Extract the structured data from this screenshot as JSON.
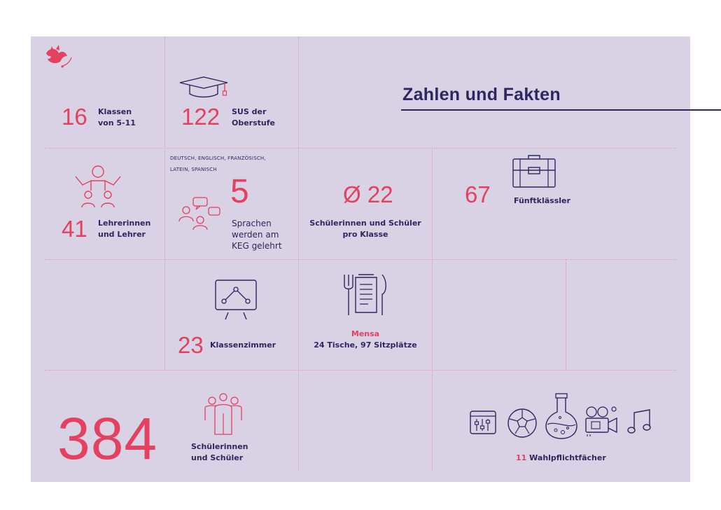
{
  "title": "Zahlen und Fakten",
  "colors": {
    "accent": "#e4405f",
    "navy": "#2d2660",
    "panel": "#d9d2e5"
  },
  "facts": {
    "klassen": {
      "number": "16",
      "label_line1": "Klassen",
      "label_line2": "von 5-11"
    },
    "oberstufe": {
      "number": "122",
      "label_line1": "SUS der",
      "label_line2": "Oberstufe",
      "icon": "graduation-cap-icon"
    },
    "lehrer": {
      "number": "41",
      "label_line1": "Lehrerinnen",
      "label_line2": "und Lehrer",
      "icon": "teachers-icon"
    },
    "sprachen": {
      "list_line1": "DEUTSCH, ENGLISCH, FRANZÖSISCH,",
      "list_line2": "LATEIN, SPANISCH",
      "number": "5",
      "label_line1": "Sprachen",
      "label_line2": "werden am",
      "label_line3": "KEG gelehrt",
      "icon": "speech-bubbles-people-icon"
    },
    "klassengroesse": {
      "number": "Ø 22",
      "label_line1": "Schülerinnen und Schüler",
      "label_line2": "pro Klasse"
    },
    "fuenftklaessler": {
      "number": "67",
      "label": "Fünftklässler",
      "icon": "briefcase-icon"
    },
    "klassenzimmer": {
      "number": "23",
      "label": "Klassenzimmer",
      "icon": "presentation-board-icon"
    },
    "mensa": {
      "title": "Mensa",
      "label": "24 Tische, 97 Sitzplätze",
      "icon": "menu-card-cutlery-icon"
    },
    "schueler": {
      "number": "384",
      "label_line1": "Schülerinnen",
      "label_line2": "und Schüler",
      "icon": "students-group-icon"
    },
    "wahlpflicht": {
      "number": "11",
      "label": "Wahlpflichtfächer",
      "icons": [
        "mixer-icon",
        "football-icon",
        "flask-icon",
        "film-camera-icon",
        "music-note-icon"
      ]
    }
  },
  "logo": "bird-logo-icon"
}
